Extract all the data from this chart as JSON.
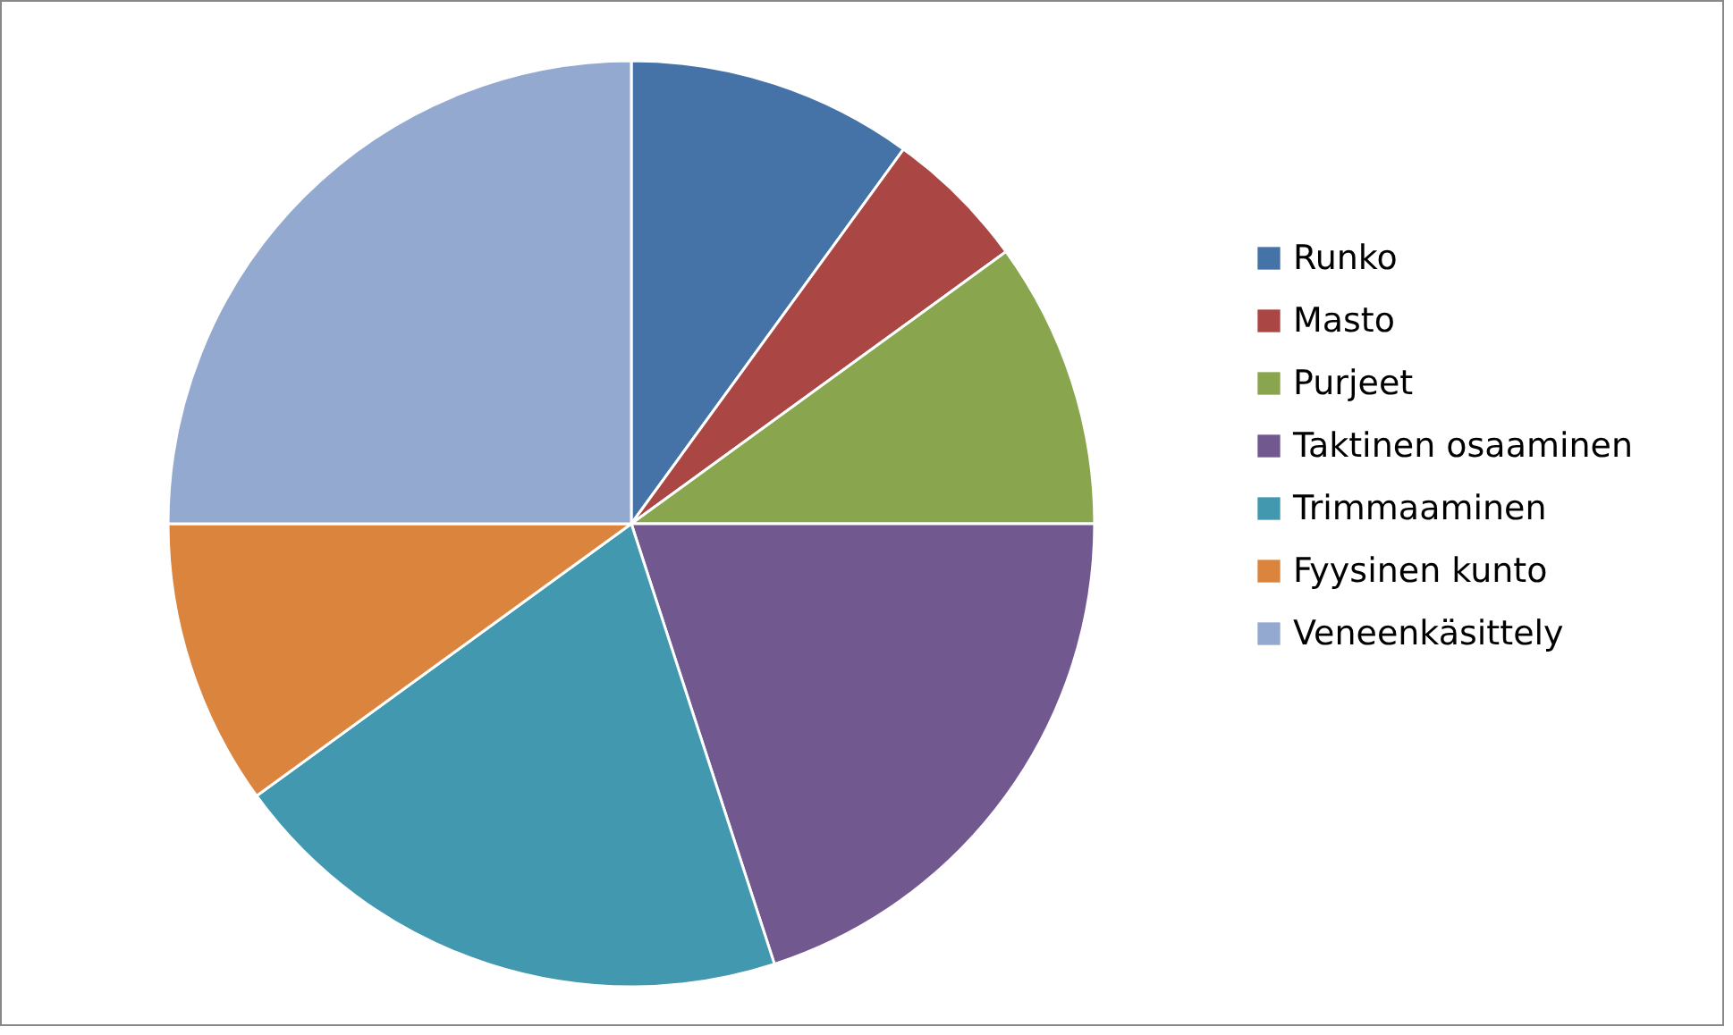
{
  "chart_data": {
    "type": "pie",
    "categories": [
      "Runko",
      "Masto",
      "Purjeet",
      "Taktinen osaaminen",
      "Trimmaaminen",
      "Fyysinen kunto",
      "Veneenkäsittely"
    ],
    "values": [
      10,
      5,
      10,
      20,
      20,
      10,
      25
    ],
    "colors": [
      "#4572a7",
      "#aa4643",
      "#89a54e",
      "#71588f",
      "#4198af",
      "#db843d",
      "#93a9cf"
    ],
    "legend": "right"
  }
}
